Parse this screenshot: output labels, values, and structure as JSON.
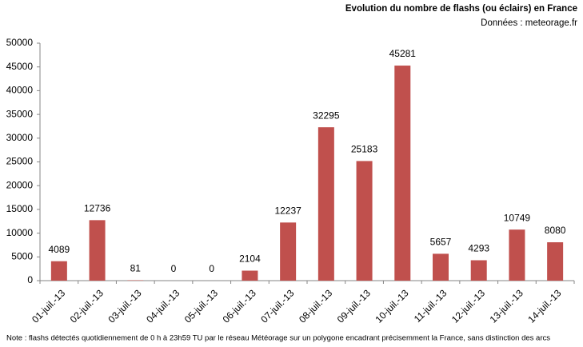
{
  "chart_data": {
    "type": "bar",
    "title": "Evolution du nombre de flashs (ou éclairs) en France",
    "subtitle": "Données : meteorage.fr",
    "note": "Note : flashs détectés quotidiennement de 0 h à 23h59 TU par le réseau Météorage sur un polygone encadrant précisemment la France, sans distinction des arcs",
    "categories": [
      "01-juil.-13",
      "02-juil.-13",
      "03-juil.-13",
      "04-juil.-13",
      "05-juil.-13",
      "06-juil.-13",
      "07-juil.-13",
      "08-juil.-13",
      "09-juil.-13",
      "10-juil.-13",
      "11-juil.-13",
      "12-juil.-13",
      "13-juil.-13",
      "14-juil.-13"
    ],
    "values": [
      4089,
      12736,
      81,
      0,
      0,
      2104,
      12237,
      32295,
      25183,
      45281,
      5657,
      4293,
      10749,
      8080
    ],
    "color": "#c0504d",
    "ylim": [
      0,
      50000
    ],
    "yticks": [
      0,
      5000,
      10000,
      15000,
      20000,
      25000,
      30000,
      35000,
      40000,
      45000,
      50000
    ],
    "grid": false
  }
}
